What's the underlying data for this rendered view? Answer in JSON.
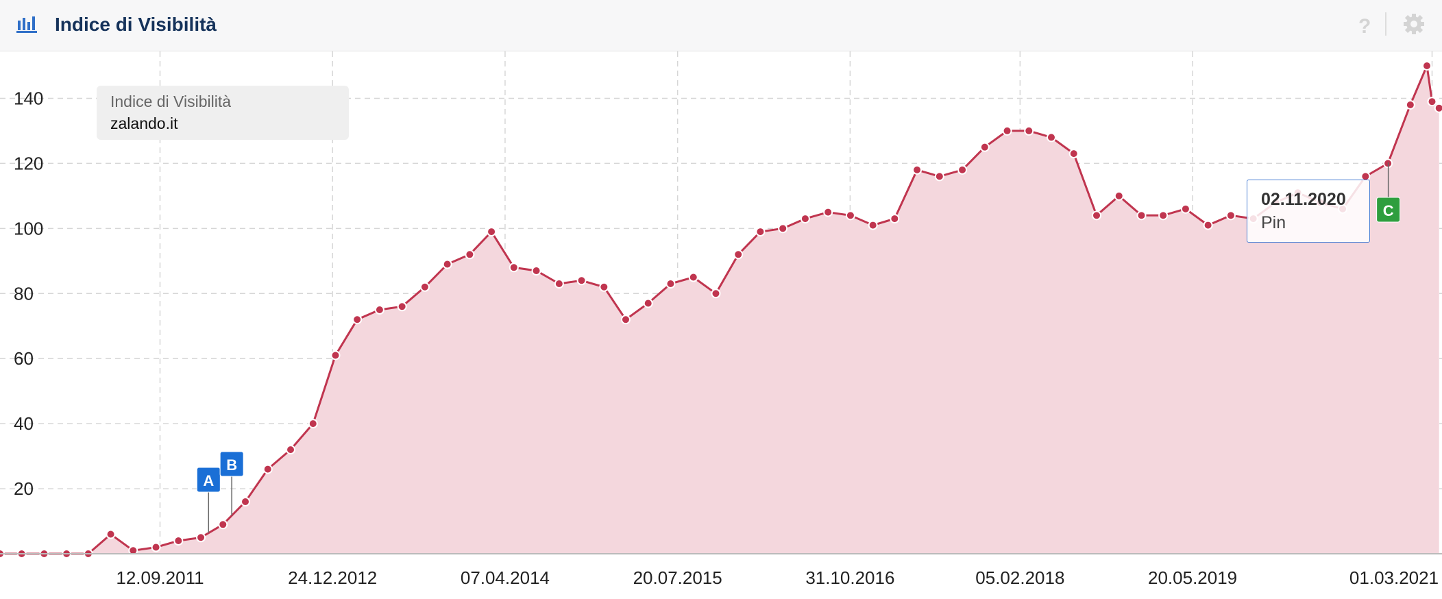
{
  "chart_data": {
    "type": "area",
    "title": "Indice di Visibilità",
    "legend_title": "Indice di Visibilità",
    "series": [
      {
        "name": "zalando.it",
        "color": "#c0354f",
        "x": [
          "2010-07-04",
          "2010-09-01",
          "2010-11-01",
          "2011-01-01",
          "2011-03-01",
          "2011-05-01",
          "2011-07-01",
          "2011-09-01",
          "2011-11-01",
          "2012-01-01",
          "2012-03-01",
          "2012-05-01",
          "2012-07-01",
          "2012-09-01",
          "2012-11-01",
          "2013-01-01",
          "2013-03-01",
          "2013-05-01",
          "2013-07-01",
          "2013-09-01",
          "2013-11-01",
          "2014-01-01",
          "2014-03-01",
          "2014-05-01",
          "2014-07-01",
          "2014-09-01",
          "2014-11-01",
          "2015-01-01",
          "2015-03-01",
          "2015-05-01",
          "2015-07-01",
          "2015-09-01",
          "2015-11-01",
          "2016-01-01",
          "2016-03-01",
          "2016-05-01",
          "2016-07-01",
          "2016-09-01",
          "2016-11-01",
          "2017-01-01",
          "2017-03-01",
          "2017-05-01",
          "2017-07-01",
          "2017-09-01",
          "2017-11-01",
          "2018-01-01",
          "2018-03-01",
          "2018-05-01",
          "2018-07-01",
          "2018-09-01",
          "2018-11-01",
          "2019-01-01",
          "2019-03-01",
          "2019-05-01",
          "2019-07-01",
          "2019-09-01",
          "2019-11-01",
          "2020-01-01",
          "2020-03-01",
          "2020-05-01",
          "2020-07-01",
          "2020-09-01",
          "2020-11-01",
          "2021-01-01",
          "2021-02-15",
          "2021-03-01",
          "2021-03-20"
        ],
        "values": [
          0,
          0,
          0,
          0,
          0,
          6,
          1,
          2,
          4,
          5,
          9,
          16,
          26,
          32,
          40,
          61,
          72,
          75,
          76,
          82,
          89,
          92,
          99,
          88,
          87,
          83,
          84,
          82,
          72,
          77,
          83,
          85,
          80,
          92,
          99,
          100,
          103,
          105,
          104,
          101,
          103,
          118,
          116,
          118,
          125,
          130,
          130,
          128,
          123,
          104,
          110,
          104,
          104,
          106,
          101,
          104,
          103,
          108,
          111,
          108,
          106,
          116,
          120,
          138,
          150,
          139,
          137
        ]
      }
    ],
    "xlim": [
      "2010-07-04",
      "2021-03-28"
    ],
    "xticks": [
      {
        "value": "2011-09-12",
        "label": "12.09.2011"
      },
      {
        "value": "2012-12-24",
        "label": "24.12.2012"
      },
      {
        "value": "2014-04-07",
        "label": "07.04.2014"
      },
      {
        "value": "2015-07-20",
        "label": "20.07.2015"
      },
      {
        "value": "2016-10-31",
        "label": "31.10.2016"
      },
      {
        "value": "2018-02-05",
        "label": "05.02.2018"
      },
      {
        "value": "2019-05-20",
        "label": "20.05.2019"
      },
      {
        "value": "2021-03-01",
        "label": "01.03.2021"
      }
    ],
    "ylim": [
      0,
      154
    ],
    "yticks": [
      20,
      40,
      60,
      80,
      100,
      120,
      140
    ],
    "grid": true,
    "pins": [
      {
        "label": "A",
        "x": "2012-01-22",
        "color": "#1a6fd6"
      },
      {
        "label": "B",
        "x": "2012-03-25",
        "color": "#1a6fd6"
      },
      {
        "label": "C",
        "x": "2020-11-02",
        "color": "#2e9e3e"
      }
    ],
    "tooltip": {
      "date": "02.11.2020",
      "text": "Pin"
    }
  }
}
